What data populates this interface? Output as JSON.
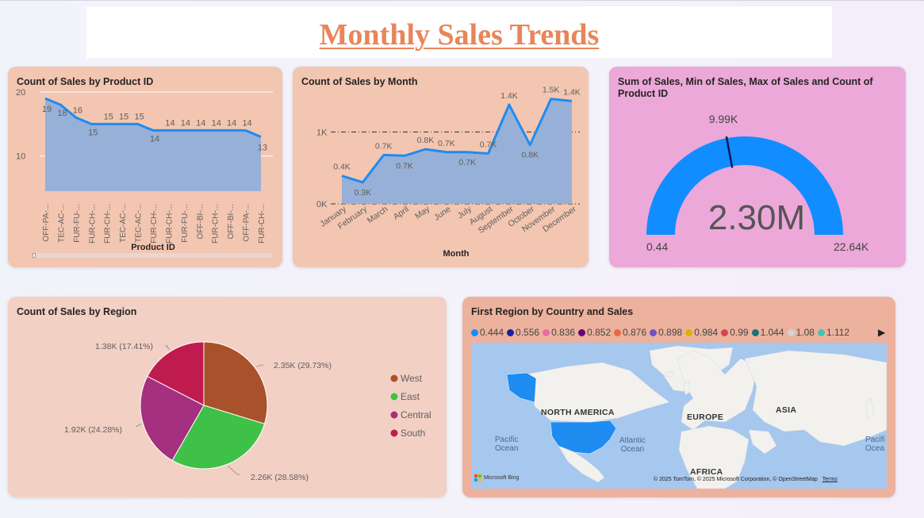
{
  "header": {
    "title": "Monthly Sales Trends"
  },
  "product_chart": {
    "title": "Count of Sales by Product ID",
    "xlabel": "Product ID",
    "chart_data": {
      "type": "area",
      "categories": [
        "OFF-PA-...",
        "TEC-AC-...",
        "FUR-FU-...",
        "FUR-CH-...",
        "FUR-CH-...",
        "TEC-AC-...",
        "TEC-AC-...",
        "FUR-CH-...",
        "FUR-CH-...",
        "FUR-FU-...",
        "OFF-BI-...",
        "FUR-CH-...",
        "OFF-BI-...",
        "OFF-PA-...",
        "FUR-CH-..."
      ],
      "values": [
        19,
        18,
        16,
        15,
        15,
        15,
        15,
        14,
        14,
        14,
        14,
        14,
        14,
        14,
        13
      ],
      "yticks": [
        10,
        20
      ],
      "ylim": [
        4.5,
        20.5
      ]
    }
  },
  "month_chart": {
    "title": "Count of Sales by Month",
    "xlabel": "Month",
    "chart_data": {
      "type": "area",
      "categories": [
        "January",
        "February",
        "March",
        "April",
        "May",
        "June",
        "July",
        "August",
        "September",
        "October",
        "November",
        "December"
      ],
      "values": [
        390,
        300,
        680,
        670,
        760,
        720,
        720,
        700,
        1380,
        820,
        1460,
        1430
      ],
      "labels": [
        "0.4K",
        "0.3K",
        "0.7K",
        "0.7K",
        "0.8K",
        "0.7K",
        "0.7K",
        "0.7K",
        "1.4K",
        "0.8K",
        "1.5K",
        "1.4K"
      ],
      "yticks": [
        {
          "v": 0,
          "t": "0K"
        },
        {
          "v": 1000,
          "t": "1K"
        }
      ],
      "ylim": [
        0,
        1600
      ]
    }
  },
  "gauge": {
    "title": "Sum of Sales, Min of Sales, Max of Sales and Count of Product ID",
    "chart_data": {
      "type": "gauge",
      "value": 2300000,
      "min": 0.44,
      "max": 22640,
      "target": 9990
    },
    "value_label": "2.30M",
    "min_label": "0.44",
    "max_label": "22.64K",
    "target_label": "9.99K",
    "color": "#118dff"
  },
  "region_pie": {
    "title": "Count of Sales by Region",
    "chart_data": {
      "type": "pie",
      "slices": [
        {
          "name": "West",
          "value": 2350,
          "label": "2.35K (29.73%)",
          "color": "#a9512a"
        },
        {
          "name": "East",
          "value": 2260,
          "label": "2.26K (28.58%)",
          "color": "#3ec146"
        },
        {
          "name": "Central",
          "value": 1920,
          "label": "1.92K (24.28%)",
          "color": "#a4307f"
        },
        {
          "name": "South",
          "value": 1380,
          "label": "1.38K (17.41%)",
          "color": "#c01b4f"
        }
      ]
    }
  },
  "map": {
    "title": "First Region by Country and Sales",
    "legend": [
      {
        "label": "0.444",
        "color": "#118dff"
      },
      {
        "label": "0.556",
        "color": "#12239e"
      },
      {
        "label": "0.836",
        "color": "#e66c9f"
      },
      {
        "label": "0.852",
        "color": "#6b007b"
      },
      {
        "label": "0.876",
        "color": "#e86a38"
      },
      {
        "label": "0.898",
        "color": "#744ec2"
      },
      {
        "label": "0.984",
        "color": "#d9b300"
      },
      {
        "label": "0.99",
        "color": "#d64550"
      },
      {
        "label": "1.044",
        "color": "#197278"
      },
      {
        "label": "1.08",
        "color": "#d3d3d3"
      },
      {
        "label": "1.112",
        "color": "#41c4b4"
      }
    ],
    "labels": {
      "north_america": "NORTH AMERICA",
      "europe": "EUROPE",
      "asia": "ASIA",
      "africa": "AFRICA",
      "pacific_left": "Pacific\nOcean",
      "atlantic": "Atlantic\nOcean",
      "pacific_right": "Pacifi\nOcea"
    },
    "brand": "Microsoft Bing",
    "attribution": "© 2025 TomTom, © 2025 Microsoft Corporation, © OpenStreetMap",
    "terms": "Terms"
  },
  "colors": {
    "card_peach": "#f3c6b1",
    "card_pink": "#eca8d9",
    "card_light": "#f3d0c4",
    "card_map": "#edb29d",
    "line": "#1e8cf0",
    "area": "#97b0d7"
  }
}
